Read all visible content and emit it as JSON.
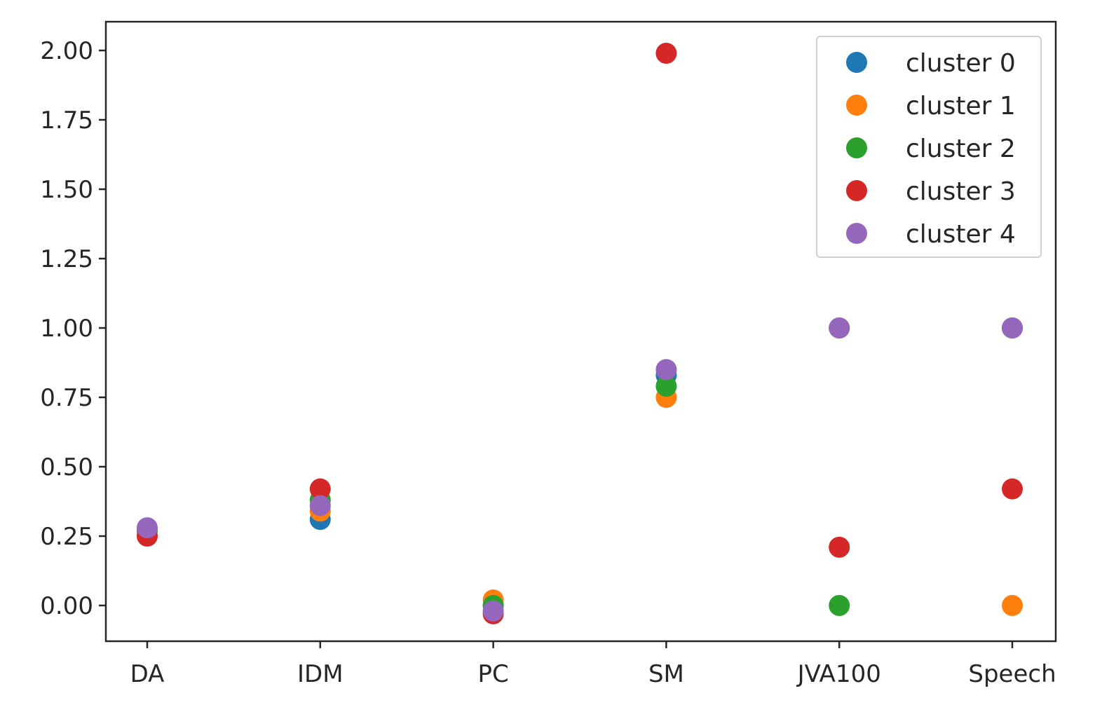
{
  "chart_data": {
    "type": "scatter",
    "categories": [
      "DA",
      "IDM",
      "PC",
      "SM",
      "JVA100",
      "Speech"
    ],
    "yticks": [
      "0.00",
      "0.25",
      "0.50",
      "0.75",
      "1.00",
      "1.25",
      "1.50",
      "1.75",
      "2.00"
    ],
    "ylim": [
      -0.13,
      2.1
    ],
    "grid": false,
    "legend_position": "top-right",
    "series": [
      {
        "name": "cluster 0",
        "color": "#1f77b4",
        "values": [
          0.27,
          0.31,
          0.0,
          0.83,
          1.0,
          1.0
        ]
      },
      {
        "name": "cluster 1",
        "color": "#ff7f0e",
        "values": [
          0.27,
          0.34,
          0.02,
          0.75,
          1.0,
          0.0
        ]
      },
      {
        "name": "cluster 2",
        "color": "#2ca02c",
        "values": [
          0.27,
          0.38,
          0.0,
          0.79,
          0.0,
          1.0
        ]
      },
      {
        "name": "cluster 3",
        "color": "#d62728",
        "values": [
          0.25,
          0.42,
          -0.03,
          1.99,
          0.21,
          0.42
        ]
      },
      {
        "name": "cluster 4",
        "color": "#9467bd",
        "values": [
          0.28,
          0.36,
          -0.02,
          0.85,
          1.0,
          1.0
        ]
      }
    ]
  }
}
